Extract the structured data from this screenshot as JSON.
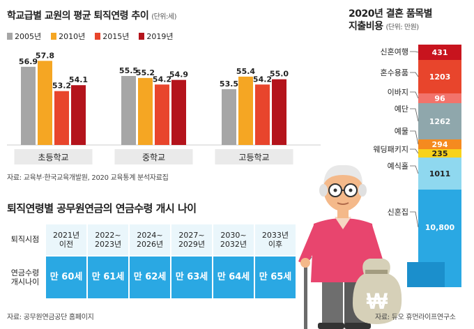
{
  "left_chart": {
    "title": "학교급별 교원의 평균 퇴직연령 추이",
    "unit": "(단위:세)",
    "source": "자료: 교육부·한국교육개발원, 2020 교육통계 분석자료집",
    "colors": {
      "2005년": "#a6a6a6",
      "2010년": "#f5a623",
      "2015년": "#e8452c",
      "2019년": "#b4141c"
    }
  },
  "chart_data": [
    {
      "type": "bar",
      "title": "학교급별 교원의 평균 퇴직연령 추이",
      "ylabel": "",
      "categories": [
        "초등학교",
        "중학교",
        "고등학교"
      ],
      "series": [
        {
          "name": "2005년",
          "values": [
            56.9,
            55.5,
            53.5
          ]
        },
        {
          "name": "2010년",
          "values": [
            57.8,
            55.2,
            55.4
          ]
        },
        {
          "name": "2015년",
          "values": [
            53.2,
            54.2,
            54.2
          ]
        },
        {
          "name": "2019년",
          "values": [
            54.1,
            54.9,
            55.0
          ]
        }
      ],
      "ylim": [
        45,
        59
      ]
    },
    {
      "type": "bar",
      "title": "2020년 결혼 품목별 지출비용",
      "stacked": true,
      "categories": [
        "신혼여행",
        "혼수용품",
        "이바지",
        "예단",
        "예물",
        "웨딩패키지",
        "예식홀",
        "신혼집"
      ],
      "values": [
        431,
        1203,
        96,
        1262,
        294,
        235,
        1011,
        10800
      ],
      "value_labels": [
        "431",
        "1203",
        "96",
        "1262",
        "294",
        "235",
        "1011",
        "10,800"
      ],
      "colors": [
        "#c8141e",
        "#e8452c",
        "#f2736b",
        "#8fa7ac",
        "#f58a1f",
        "#f8d21a",
        "#8fd8ef",
        "#2aa8e3"
      ]
    }
  ],
  "right_chart": {
    "title_line1": "2020년 결혼 품목별",
    "title_line2": "지출비용",
    "unit": "(단위: 만원)",
    "source": "자료: 듀오 휴먼라이프연구소"
  },
  "pension": {
    "title": "퇴직연령별 공무원연금의 연금수령 개시 나이",
    "row1_header": "퇴직시점",
    "row2_header": "연금수령\n개시나이",
    "periods": [
      "2021년\n이전",
      "2022~\n2023년",
      "2024~\n2026년",
      "2027~\n2029년",
      "2030~\n2032년",
      "2033년\n이후"
    ],
    "ages": [
      "만 60세",
      "만 61세",
      "만 62세",
      "만 63세",
      "만 64세",
      "만 65세"
    ],
    "source": "자료: 공무원연금공단 홈페이지"
  },
  "bag_symbol": "₩"
}
